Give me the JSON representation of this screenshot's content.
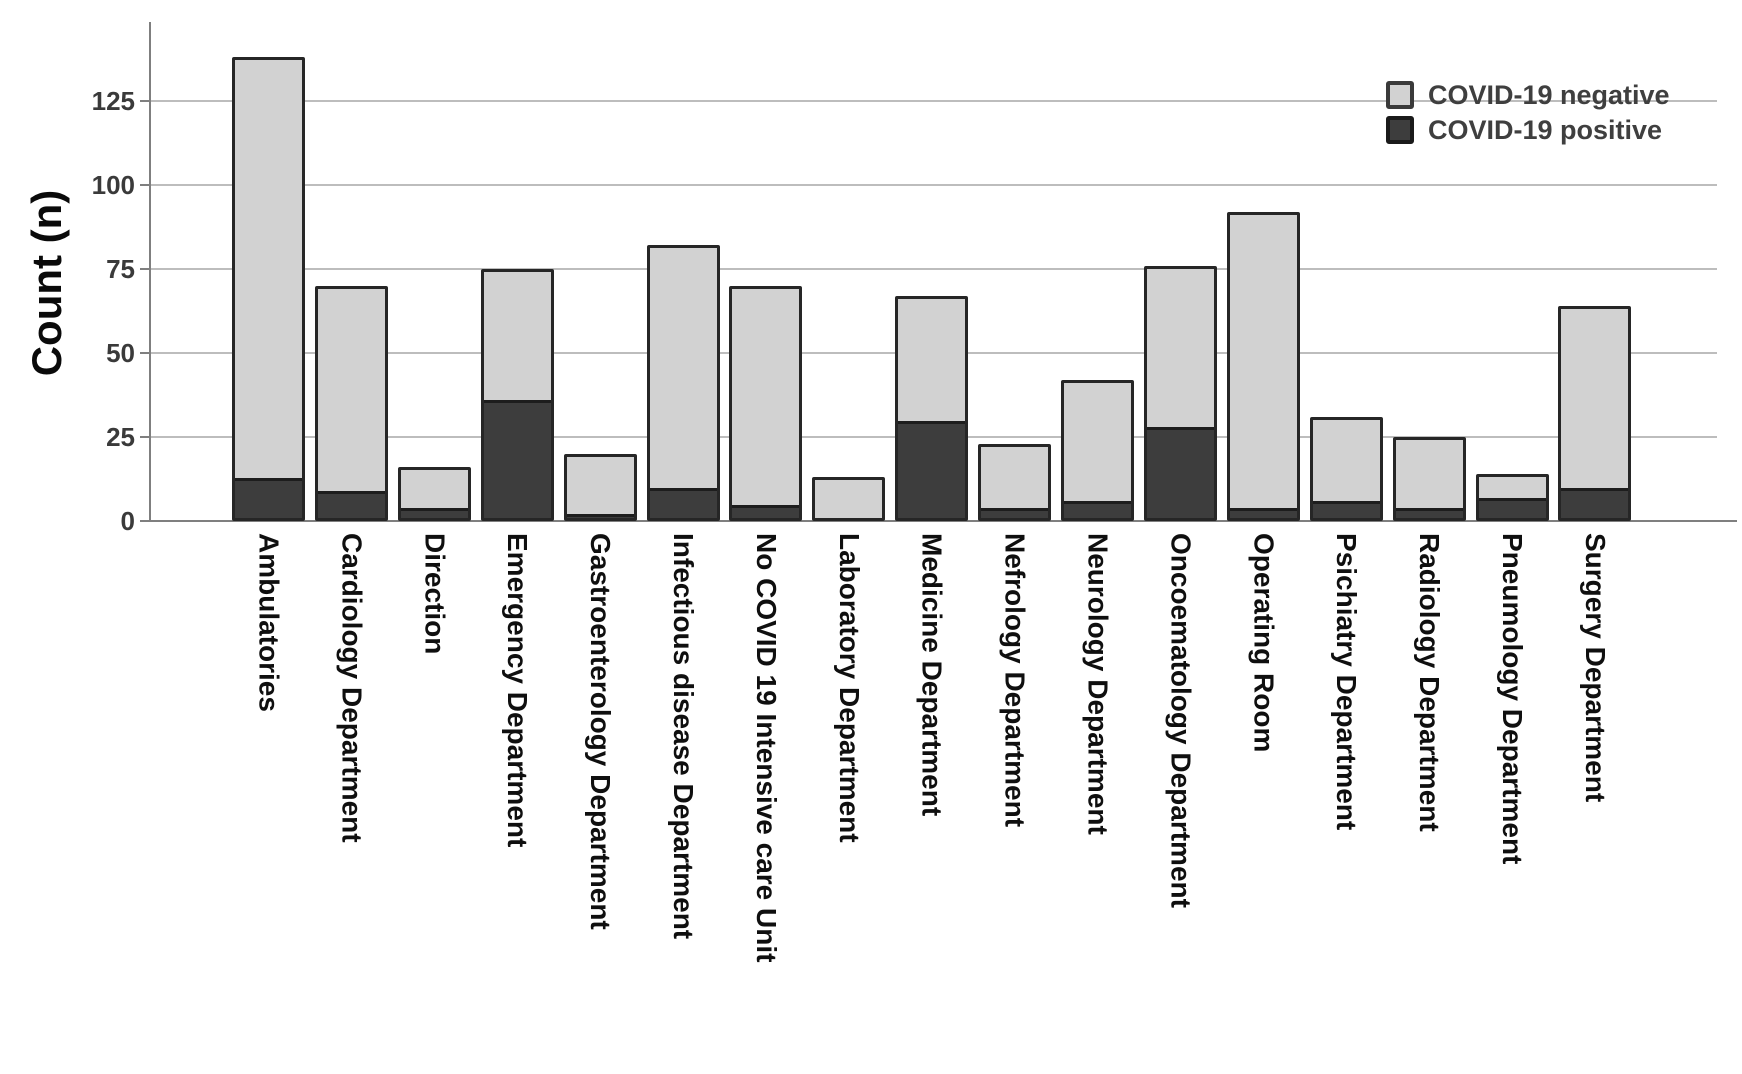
{
  "chart_data": {
    "type": "bar",
    "stacked": true,
    "orientation": "vertical",
    "title": "",
    "xlabel": "",
    "ylabel": "Count (n)",
    "ylim": [
      0,
      150
    ],
    "yticks": [
      0,
      25,
      50,
      75,
      100,
      125
    ],
    "grid": true,
    "legend_position": "top-right",
    "categories": [
      "Ambulatories",
      "Cardiology Department",
      "Direction",
      "Emergency Department",
      "Gastroenterology Department",
      "Infectious disease Department",
      "No COVID 19 Intensive care Unit",
      "Laboratory Department",
      "Medicine Department",
      "Nefrology Department",
      "Neurology Department",
      "Oncoematology Department",
      "Operating Room",
      "Psichiatry Department",
      "Radiology Department",
      "Pneumology Department",
      "Surgery Department"
    ],
    "series": [
      {
        "name": "COVID-19 negative",
        "color": "#d2d2d2",
        "stack_order": "top",
        "values": [
          126,
          62,
          13,
          40,
          19,
          73,
          66,
          13,
          38,
          20,
          37,
          49,
          89,
          26,
          22,
          8,
          55
        ]
      },
      {
        "name": "COVID-19 positive",
        "color": "#3d3d3d",
        "stack_order": "bottom",
        "values": [
          12,
          8,
          3,
          35,
          1,
          9,
          4,
          0,
          29,
          3,
          5,
          27,
          3,
          5,
          3,
          6,
          9
        ]
      }
    ],
    "totals": [
      138,
      70,
      16,
      75,
      20,
      82,
      70,
      13,
      67,
      23,
      42,
      76,
      92,
      31,
      25,
      14,
      64
    ]
  },
  "style": {
    "bar_border_color": "#262626",
    "negative_fill": "#d2d2d2",
    "positive_fill": "#3d3d3d",
    "grid_color": "#bdbdbd",
    "axis_color": "#7f7f7f",
    "tick_label_color": "#3a3a3a",
    "category_label_color": "#0f0f0f",
    "legend_text_color": "#3f3f3f",
    "background": "#ffffff"
  }
}
